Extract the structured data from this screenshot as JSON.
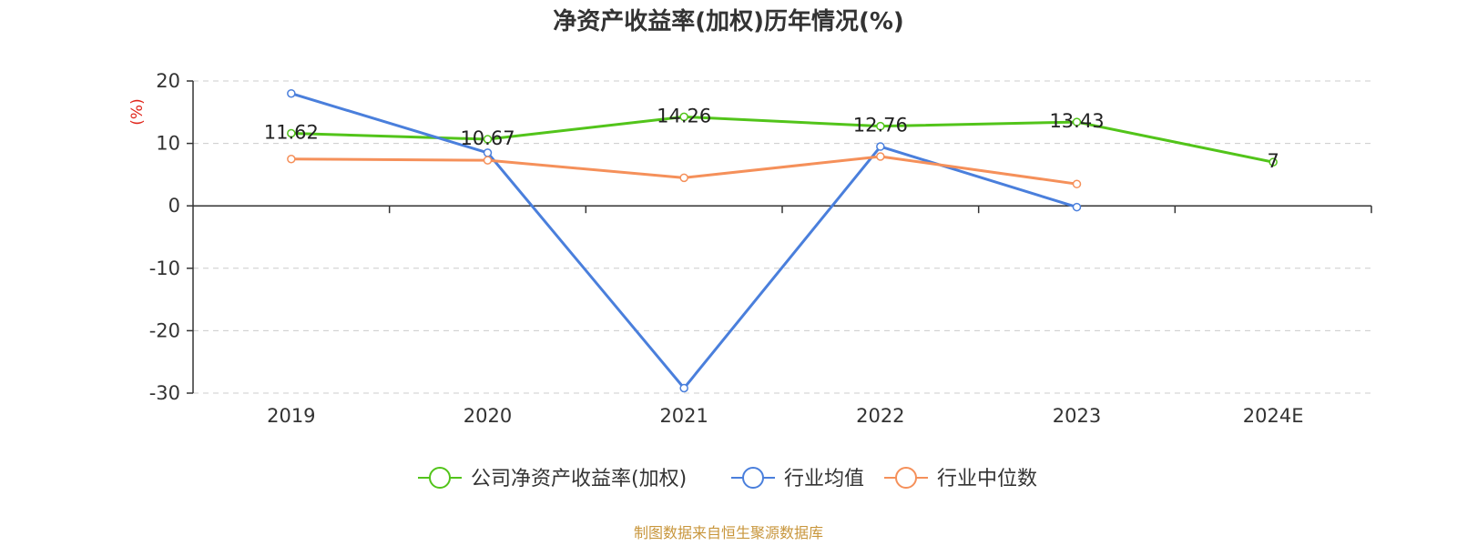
{
  "chart_data": {
    "type": "line",
    "title": "净资产收益率(加权)历年情况(%)",
    "ylabel": "(%)",
    "ylim": [
      -30,
      20
    ],
    "yticks": [
      "20",
      "10",
      "0",
      "-10",
      "-20",
      "-30"
    ],
    "ytick_values": [
      20,
      10,
      0,
      -10,
      -20,
      -30
    ],
    "categories": [
      "2019",
      "2020",
      "2021",
      "2022",
      "2023",
      "2024E"
    ],
    "grid": true,
    "legend_position": "bottom-center",
    "series": [
      {
        "name": "公司净资产收益率(加权)",
        "color": "#52c41a",
        "values": [
          11.62,
          10.67,
          14.26,
          12.76,
          13.43,
          7
        ],
        "labels": [
          "11.62",
          "10.67",
          "14.26",
          "12.76",
          "13.43",
          "7"
        ]
      },
      {
        "name": "行业均值",
        "color": "#4a7fdc",
        "values": [
          18.0,
          8.5,
          -29.2,
          9.5,
          -0.2,
          null
        ]
      },
      {
        "name": "行业中位数",
        "color": "#f5905a",
        "values": [
          7.5,
          7.3,
          4.5,
          7.9,
          3.5,
          null
        ]
      }
    ]
  },
  "source_text": "制图数据来自恒生聚源数据库",
  "colors": {
    "axis": "#333333",
    "grid": "#cccccc",
    "ylabel": "#e0261b",
    "source": "#c8963c"
  }
}
